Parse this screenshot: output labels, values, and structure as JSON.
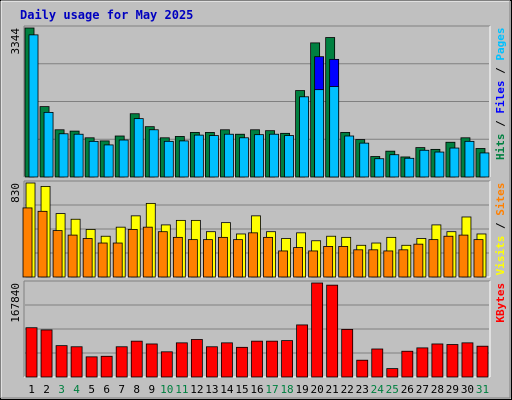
{
  "title": "Daily usage for May 2025",
  "chart_data": [
    {
      "type": "bar",
      "panel": "top",
      "ylim": [
        0,
        3344
      ],
      "ytick_label": "3344",
      "right_labels": [
        {
          "text": "Hits",
          "color": "#008040"
        },
        {
          "text": "Files",
          "color": "#0000FF"
        },
        {
          "text": "Pages",
          "color": "#00C0FF"
        }
      ],
      "categories": [
        "1",
        "2",
        "3",
        "4",
        "5",
        "6",
        "7",
        "8",
        "9",
        "10",
        "11",
        "12",
        "13",
        "14",
        "15",
        "16",
        "17",
        "18",
        "19",
        "20",
        "21",
        "22",
        "23",
        "24",
        "25",
        "26",
        "27",
        "28",
        "29",
        "30",
        "31"
      ],
      "series": [
        {
          "name": "Hits",
          "color": "#008040",
          "values": [
            3344,
            1580,
            1060,
            1030,
            880,
            810,
            920,
            1420,
            1130,
            880,
            910,
            1000,
            1000,
            1060,
            960,
            1060,
            1040,
            980,
            1940,
            3010,
            3130,
            1000,
            840,
            460,
            580,
            450,
            660,
            620,
            780,
            880,
            640
          ]
        },
        {
          "name": "Files",
          "color": "#0000FF",
          "values": [
            0,
            0,
            0,
            0,
            0,
            0,
            0,
            0,
            0,
            0,
            0,
            0,
            0,
            0,
            0,
            0,
            0,
            0,
            0,
            2700,
            2640,
            0,
            0,
            0,
            0,
            0,
            0,
            0,
            0,
            0,
            0
          ]
        },
        {
          "name": "Pages",
          "color": "#00C0FF",
          "values": [
            3190,
            1450,
            970,
            960,
            800,
            720,
            830,
            1310,
            1060,
            800,
            810,
            940,
            930,
            960,
            880,
            950,
            960,
            930,
            1800,
            1960,
            2030,
            920,
            760,
            410,
            500,
            420,
            600,
            560,
            650,
            800,
            540
          ]
        }
      ]
    },
    {
      "type": "bar",
      "panel": "middle",
      "ylim": [
        0,
        830
      ],
      "ytick_label": "830",
      "right_labels": [
        {
          "text": "Visits",
          "color": "#FFFF00"
        },
        {
          "text": "Sites",
          "color": "#FF8000"
        }
      ],
      "categories": [
        "1",
        "2",
        "3",
        "4",
        "5",
        "6",
        "7",
        "8",
        "9",
        "10",
        "11",
        "12",
        "13",
        "14",
        "15",
        "16",
        "17",
        "18",
        "19",
        "20",
        "21",
        "22",
        "23",
        "24",
        "25",
        "26",
        "27",
        "28",
        "29",
        "30",
        "31"
      ],
      "series": [
        {
          "name": "Visits",
          "color": "#FFFF00",
          "values": [
            830,
            800,
            560,
            510,
            420,
            360,
            440,
            540,
            650,
            460,
            500,
            500,
            400,
            480,
            380,
            540,
            400,
            340,
            390,
            320,
            360,
            350,
            280,
            300,
            350,
            280,
            340,
            460,
            400,
            530,
            380
          ]
        },
        {
          "name": "Sites",
          "color": "#FF8000",
          "values": [
            610,
            580,
            410,
            370,
            340,
            300,
            300,
            420,
            440,
            400,
            350,
            330,
            330,
            350,
            330,
            390,
            350,
            230,
            260,
            230,
            270,
            270,
            240,
            240,
            230,
            240,
            290,
            330,
            360,
            370,
            330
          ]
        }
      ]
    },
    {
      "type": "bar",
      "panel": "bottom",
      "ylim": [
        0,
        167840
      ],
      "ytick_label": "167840",
      "right_labels": [
        {
          "text": "KBytes",
          "color": "#FF0000"
        }
      ],
      "categories": [
        "1",
        "2",
        "3",
        "4",
        "5",
        "6",
        "7",
        "8",
        "9",
        "10",
        "11",
        "12",
        "13",
        "14",
        "15",
        "16",
        "17",
        "18",
        "19",
        "20",
        "21",
        "22",
        "23",
        "24",
        "25",
        "26",
        "27",
        "28",
        "29",
        "30",
        "31"
      ],
      "series": [
        {
          "name": "KBytes",
          "color": "#FF0000",
          "values": [
            88000,
            84000,
            56000,
            54000,
            36000,
            37000,
            54000,
            64000,
            59000,
            45000,
            61000,
            67000,
            54000,
            61000,
            53000,
            64000,
            64000,
            65000,
            93000,
            167840,
            164000,
            85000,
            30000,
            50000,
            15000,
            46000,
            52000,
            59000,
            58000,
            61000,
            55000
          ]
        }
      ]
    }
  ],
  "day_label_colors": [
    "#000000",
    "#000000",
    "#008040",
    "#008040",
    "#000000",
    "#000000",
    "#000000",
    "#000000",
    "#000000",
    "#008040",
    "#008040",
    "#000000",
    "#000000",
    "#000000",
    "#000000",
    "#000000",
    "#008040",
    "#008040",
    "#000000",
    "#000000",
    "#000000",
    "#000000",
    "#000000",
    "#008040",
    "#008040",
    "#000000",
    "#000000",
    "#000000",
    "#000000",
    "#000000",
    "#008040"
  ]
}
